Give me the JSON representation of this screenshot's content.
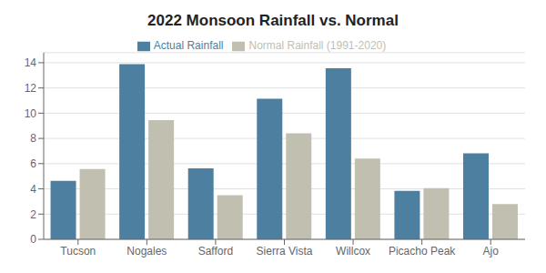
{
  "chart_data": {
    "type": "bar",
    "title": "2022 Monsoon Rainfall vs. Normal",
    "categories": [
      "Tucson",
      "Nogales",
      "Safford",
      "Sierra Vista",
      "Willcox",
      "Picacho Peak",
      "Ajo"
    ],
    "series": [
      {
        "name": "Actual Rainfall",
        "color": "#4d7fa0",
        "values": [
          4.63,
          13.88,
          5.63,
          11.15,
          13.57,
          3.84,
          6.82
        ]
      },
      {
        "name": "Normal Rainfall (1991-2020)",
        "color": "#c0bfb0",
        "values": [
          5.57,
          9.45,
          3.5,
          8.4,
          6.4,
          4.05,
          2.8
        ]
      }
    ],
    "ylim": [
      0,
      14.8
    ],
    "yticks": [
      0,
      2,
      4,
      6,
      8,
      10,
      12,
      14
    ],
    "grid": true,
    "legend": "top"
  }
}
